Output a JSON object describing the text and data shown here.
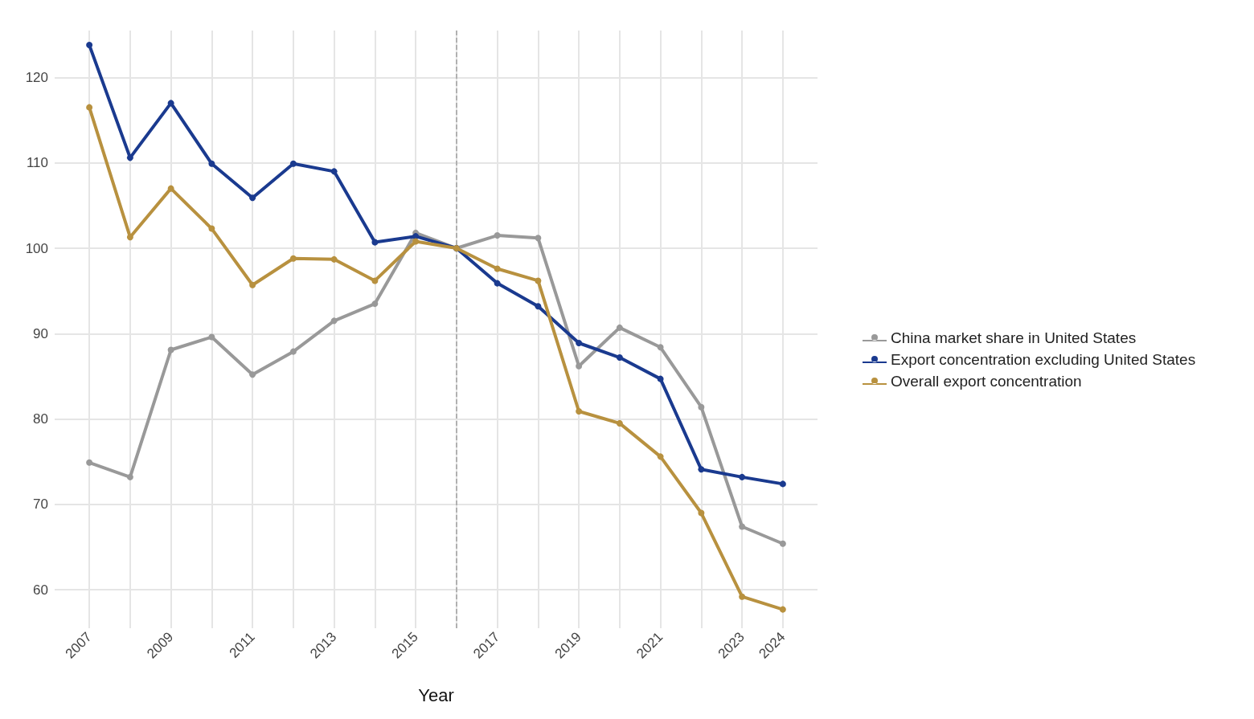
{
  "chart_data": {
    "type": "line",
    "xlabel": "Year",
    "x": [
      2007,
      2008,
      2009,
      2010,
      2011,
      2012,
      2013,
      2014,
      2015,
      2016,
      2017,
      2018,
      2019,
      2020,
      2021,
      2022,
      2023,
      2024
    ],
    "series": [
      {
        "name": "China market share in United States",
        "color": "#999999",
        "values": [
          74.9,
          73.2,
          88.1,
          89.6,
          85.2,
          87.9,
          91.5,
          93.5,
          101.8,
          100,
          101.5,
          101.2,
          86.2,
          90.7,
          88.4,
          81.4,
          67.4,
          65.4
        ]
      },
      {
        "name": "Export concentration excluding United States",
        "color": "#1a3a8f",
        "values": [
          123.8,
          110.6,
          117.0,
          109.9,
          105.9,
          109.9,
          109.0,
          100.7,
          101.4,
          100,
          95.9,
          93.2,
          88.9,
          87.2,
          84.7,
          74.1,
          73.2,
          72.4
        ]
      },
      {
        "name": "Overall export concentration",
        "color": "#b8913f",
        "values": [
          116.5,
          101.3,
          107.0,
          102.3,
          95.7,
          98.8,
          98.7,
          96.2,
          100.8,
          100,
          97.6,
          96.2,
          80.9,
          79.5,
          75.6,
          69.0,
          59.2,
          57.7
        ]
      }
    ],
    "xlim": [
      2006.15,
      2024.85
    ],
    "xticks": [
      2007,
      {
        "value": 2008,
        "label": null
      },
      2009,
      {
        "value": 2010,
        "label": null
      },
      2011,
      {
        "value": 2012,
        "label": null
      },
      2013,
      {
        "value": 2014,
        "label": null
      },
      2015,
      {
        "value": 2016,
        "label": null
      },
      2017,
      {
        "value": 2018,
        "label": null
      },
      2019,
      {
        "value": 2020,
        "label": null
      },
      2021,
      {
        "value": 2022,
        "label": null
      },
      2023,
      2024
    ],
    "ylim": [
      55.5,
      125.5
    ],
    "yticks": [
      60,
      70,
      80,
      90,
      100,
      110,
      120
    ],
    "ref_lines": [
      {
        "axis": "x",
        "value": 2016,
        "color": "#a0a0a0",
        "line_style": "dashed"
      }
    ],
    "grid": true,
    "legend": "right",
    "marker": "circle",
    "line_style": "solid"
  }
}
